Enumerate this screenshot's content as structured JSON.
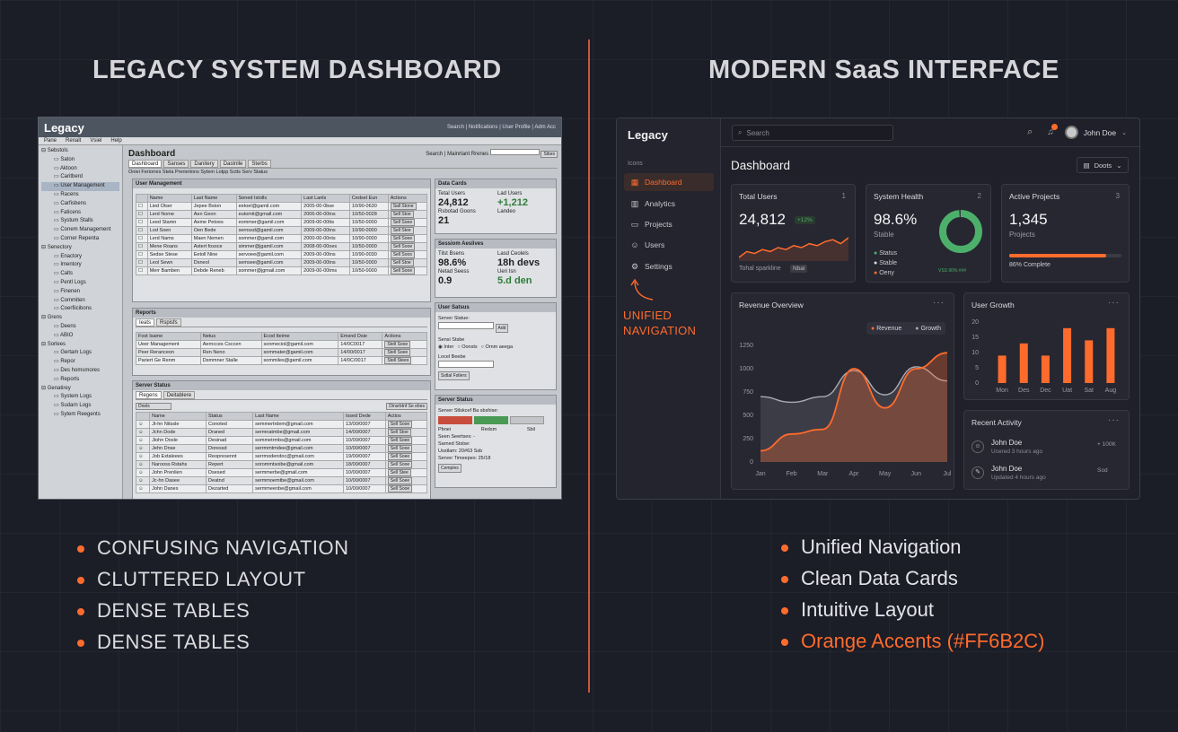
{
  "colors": {
    "accent": "#FF6B2C",
    "background": "#1B1D27",
    "positive": "#4CB06A"
  },
  "left": {
    "heading": "LEGACY SYSTEM DASHBOARD",
    "bullets": [
      "CONFUSING NAVIGATION",
      "CLUTTERED LAYOUT",
      "DENSE TABLES",
      "DENSE TABLES"
    ],
    "window": {
      "title": "Legacy",
      "toplinks": "Search | Notifications | User Profile | Adm Acc",
      "menu": [
        "Pane",
        "Renalt",
        "Vsiel",
        "Help"
      ],
      "tree": [
        "Sebstols",
        "Saton",
        "Aktoon",
        "Caritberd",
        "User Management",
        "Racens",
        "Carfisbens",
        "Faticens",
        "Systum Stalls",
        "Conem Management",
        "Corner Repenta",
        "Senectory",
        "Enactory",
        "Imentory",
        "Calts",
        "Pentl Logs",
        "Finenen",
        "Commiten",
        "Coerfiicibons",
        "Grens",
        "Deens",
        "ABIO",
        "Sorlees",
        "Gertam Logs",
        "Repor",
        "Des homsmores",
        "Reports",
        "Genatirey",
        "System Logs",
        "Sudarn Logs",
        "Sytem Reegents"
      ],
      "page_title": "Dashboard",
      "search_label": "Search | Mainrtant Rrenes",
      "search_button": "Sibes",
      "tabs": [
        "Dashboard",
        "Sanses",
        "Danitery",
        "Dastnlle",
        "Sterbs"
      ],
      "subtabs": "Oniei Feriorres Stela Preriertons Sytem Lotpp Sctts Serv Status",
      "user_mgmt": {
        "title": "User Management",
        "headers": [
          "",
          "Name",
          "Last Name",
          "Sened Istolls",
          "Last Lanls",
          "Cedsel Eun",
          "Actions"
        ],
        "rows": [
          [
            "Lied Olser",
            "Jepee Bston",
            "eetoel@gamil.com",
            "2005-00-0bse",
            "10/90-0630",
            "Sall Stone"
          ],
          [
            "Lerd Nome",
            "Aen Geon",
            "eutomit@gmall.com",
            "2006-00-00tns",
            "10/50-0028",
            "Sell Stoe"
          ],
          [
            "Leed Stamn",
            "Aeme Petoes",
            "eommer@gamil.com",
            "2009-00-00tts",
            "10/50-0000",
            "Sell Soee"
          ],
          [
            "Lod Soen",
            "Oen Bede",
            "sernssd@gamil.com",
            "2009-00-00tns",
            "10/90-0000",
            "Sell Stee"
          ],
          [
            "Lerd Nams",
            "Maen Nemen",
            "sommer@gamil.com",
            "2000-00-00nts",
            "10/90-0000",
            "Sell Soee"
          ],
          [
            "Mene Roans",
            "Astert fossce",
            "simmer@jgamil.com",
            "2008-00-00oes",
            "10/50-0000",
            "Sell Sooe"
          ],
          [
            "Sedse Stese",
            "Eetoll Nine",
            "servoee@gamil.com",
            "2009-00-00tns",
            "10/90-0030",
            "Sell Soos"
          ],
          [
            "Leol Sewn",
            "Dsneol",
            "semsee@gamil.com",
            "2009-00-00tns",
            "10/50-0000",
            "Sell Stoe"
          ],
          [
            "Merr Bamben",
            "Debde Reneb",
            "sommer@jgmail.com",
            "2009-00-00tms",
            "10/50-0000",
            "Sell Sooe"
          ]
        ]
      },
      "reports": {
        "title": "Reports",
        "tabs": [
          "Ieats",
          "Rspisfs"
        ],
        "headers": [
          "Fost Isame",
          "Netus",
          "Ecod Iteime",
          "Emsnd Dsie",
          "Actions"
        ],
        "rows": [
          [
            "Ueer Management",
            "Aerncces Csccen",
            "sonmeciol@gamil.com",
            "14/0C0017",
            "Stell Sooe"
          ],
          [
            "Peer Reranceon",
            "Ren Neno",
            "sommater@gamil.com",
            "14/00/0017",
            "Stell Soee"
          ],
          [
            "Pariert Ge Renm",
            "Dsmmner Stalle",
            "sommiles@gamil.com",
            "14/0C/0017",
            "Stell Stees"
          ]
        ]
      },
      "server_status": {
        "title": "Server Status",
        "tabs": [
          "Regens",
          "Deitablere"
        ],
        "filter": "Dnels",
        "filter_button": "Dinsrbtnf Se ebes",
        "headers": [
          "",
          "Name",
          "Status",
          "Last Name",
          "Issed Dede",
          "Actios"
        ],
        "rows": [
          [
            "Jt-hn Nitssle",
            "Conoted",
            "semmertrdem@gmail.com",
            "13/00/0007",
            "Sell Sooe"
          ],
          [
            "Jchn Dode",
            "Draned",
            "sermnatmbe@gmail.com",
            "14/00/0007",
            "Sell Stoe"
          ],
          [
            "Jiohn Dosle",
            "Desinad",
            "sommetrmbs@gmail.com",
            "10/00/0007",
            "Sell Soee"
          ],
          [
            "Jehn Dnse",
            "Doressd",
            "serrmmtmdee@gmail.com",
            "10/00/0007",
            "Sell Sooe"
          ],
          [
            "Job Extaleees",
            "Reopresennt",
            "serrmodendoc@gmail.com",
            "19/00/0007",
            "Sell Soee"
          ],
          [
            "Narooss Rstahs",
            "Repert",
            "sorommtsoibe@gmail.com",
            "18/00/0007",
            "Sell Sooe"
          ],
          [
            "John Prenlien",
            "Dsesed",
            "sermmerbe@gmail.com",
            "10/00/0007",
            "Sell Stee"
          ],
          [
            "Jc-hn Dasee",
            "Deatnd",
            "sermmoemtbe@gmail.com",
            "10/00/0007",
            "Sell Soee"
          ],
          [
            "John Danes",
            "Dezarted",
            "sermmeenbe@gmail.com",
            "10/00/0007",
            "Sell Sooe"
          ]
        ]
      },
      "data_cards": {
        "title": "Data Cards",
        "l1": "Tetal Users",
        "v1": "24,812",
        "l2": "Lad Users",
        "v2": "+1,212",
        "l3": "Rsbotad Goons",
        "v3": "21",
        "l4": "Landeo"
      },
      "session": {
        "title": "Sessiom Aeslives",
        "l1": "Tilst Bsens",
        "v1": "98.6%",
        "l2": "Lasd Ceolels",
        "v2": "18h devs",
        "l3": "Netad Seess",
        "v3": "0.9",
        "l4": "Ueri Isn",
        "v4": "5.d den"
      },
      "user_status": {
        "title": "User Satsus",
        "l1": "Server Slatue:",
        "btn": "Add",
        "l2": "Sensi Stsbe",
        "radios": [
          "Inter",
          "Oonsts",
          "Ornm aeega"
        ],
        "l3": "Locel Beebe",
        "submit": "Sstlal Fstlers"
      },
      "server_box": {
        "title": "Server Status",
        "l1": "Server Stlskcef Ba sbshise:",
        "c1": "Pbnei",
        "c2": "Redsm",
        "c3": "Sbil",
        "lines": [
          "Seen Seertses:  -",
          "Sarned Stslse:",
          "Usstlam:   20#63 Ssb",
          "Server Timeepes:  25/18"
        ],
        "btn": "Cemples"
      }
    }
  },
  "right": {
    "heading": "MODERN SaaS INTERFACE",
    "bullets": [
      "Unified Navigation",
      "Clean Data Cards",
      "Intuitive Layout",
      "Orange Accents (#FF6B2C)"
    ],
    "callout": "UNIFIED NAVIGATION",
    "app": {
      "logo": "Legacy",
      "section": "Icons",
      "nav": [
        "Dashboard",
        "Analytics",
        "Projects",
        "Users",
        "Settings"
      ],
      "search_placeholder": "Search",
      "user": "John Doe",
      "page_title": "Dashboard",
      "period": "Doots",
      "card1": {
        "title": "Total Users",
        "num": "1",
        "value": "24,812",
        "badge": "+12%",
        "footer": "Tohal sparkline",
        "tag": "Nbal"
      },
      "card2": {
        "title": "System Health",
        "num": "2",
        "value": "98.6%",
        "sub": "Stable",
        "legend": [
          "Status",
          "Stable",
          "Oeny"
        ],
        "tiny": "VSS  90% ###"
      },
      "card3": {
        "title": "Active Projects",
        "num": "3",
        "value": "1,345",
        "sub": "Projects",
        "progress": 0.86,
        "progress_label": "86% Complete"
      },
      "revenue": {
        "title": "Revenue Overview",
        "legend": [
          "Revenue",
          "Growth"
        ]
      },
      "growth": {
        "title": "User Growth"
      },
      "activity": {
        "title": "Recent Activity",
        "items": [
          {
            "name": "John Doe",
            "time": "Ucered 3 hours ago",
            "value": "+ 100K"
          },
          {
            "name": "John Doe",
            "time": "Updated 4 hours ago",
            "value": "Sod"
          }
        ]
      }
    }
  },
  "chart_data": [
    {
      "type": "area",
      "title": "Revenue Overview",
      "categories": [
        "Jan",
        "Feb",
        "Mar",
        "Apr",
        "May",
        "Jun",
        "Jul"
      ],
      "ylim": [
        0,
        1250
      ],
      "yticks": [
        0,
        250,
        500,
        750,
        1000,
        1250
      ],
      "series": [
        {
          "name": "Revenue",
          "values": [
            120,
            300,
            350,
            1000,
            580,
            1000,
            1170
          ]
        },
        {
          "name": "Growth",
          "values": [
            700,
            640,
            700,
            980,
            720,
            1020,
            870
          ]
        }
      ]
    },
    {
      "type": "bar",
      "title": "User Growth",
      "categories": [
        "Mon",
        "Des",
        "Dec",
        "Uat",
        "Sat",
        "Aug"
      ],
      "ylim": [
        0,
        20
      ],
      "yticks": [
        0,
        5,
        10,
        15,
        20
      ],
      "values": [
        9,
        13,
        9,
        18,
        14,
        18
      ]
    },
    {
      "type": "line",
      "title": "Tohal sparkline",
      "values": [
        2,
        5,
        4,
        6,
        5,
        7,
        6,
        8,
        7,
        9,
        8,
        10,
        11,
        9,
        12
      ]
    },
    {
      "type": "pie",
      "title": "System Health",
      "values": [
        98.6,
        1.4
      ]
    }
  ]
}
